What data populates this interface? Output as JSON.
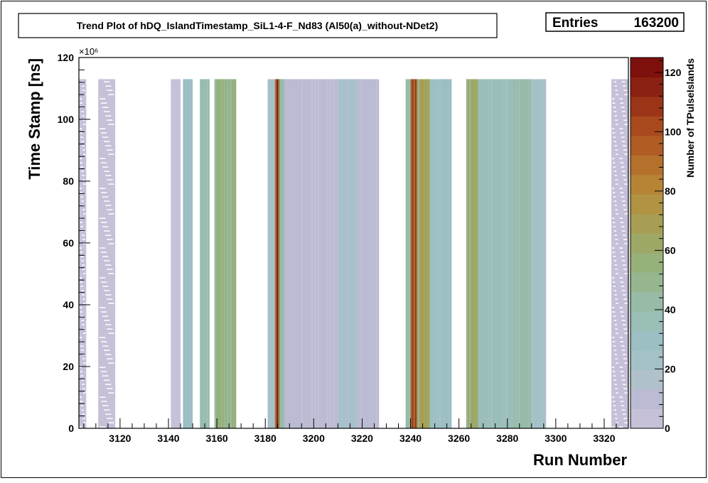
{
  "chart_data": {
    "type": "heatmap",
    "title": "Trend Plot of hDQ_IslandTimestamp_SiL1-4-F_Nd83 (Al50(a)_without-NDet2)",
    "stats": {
      "label": "Entries",
      "value": "163200"
    },
    "xlabel": "Run Number",
    "ylabel": "Time Stamp [ns]",
    "zlabel": "Number of TPulseIslands",
    "y_exponent": "×10⁶",
    "xlim": [
      3103,
      3330
    ],
    "ylim": [
      0,
      120
    ],
    "zlim": [
      0,
      125
    ],
    "x_ticks": [
      3120,
      3140,
      3160,
      3180,
      3200,
      3220,
      3240,
      3260,
      3280,
      3300,
      3320
    ],
    "y_ticks": [
      0,
      20,
      40,
      60,
      80,
      100,
      120
    ],
    "z_ticks": [
      0,
      20,
      40,
      60,
      80,
      100,
      120
    ],
    "y_max_filled": 113,
    "runs": [
      {
        "from": 3103,
        "to": 3106,
        "level": 3,
        "sparse": true
      },
      {
        "from": 3111,
        "to": 3118,
        "level": 2,
        "sparse": true
      },
      {
        "from": 3141,
        "to": 3145,
        "level": 6
      },
      {
        "from": 3146,
        "to": 3150,
        "level": 30
      },
      {
        "from": 3153,
        "to": 3157,
        "level": 45
      },
      {
        "from": 3159,
        "to": 3168,
        "level": 55
      },
      {
        "from": 3181,
        "to": 3184,
        "level": 25
      },
      {
        "from": 3184,
        "to": 3186,
        "level": 118
      },
      {
        "from": 3186,
        "to": 3188,
        "level": 40
      },
      {
        "from": 3188,
        "to": 3195,
        "level": 12
      },
      {
        "from": 3195,
        "to": 3210,
        "level": 8
      },
      {
        "from": 3210,
        "to": 3218,
        "level": 20
      },
      {
        "from": 3218,
        "to": 3227,
        "level": 10
      },
      {
        "from": 3238,
        "to": 3240,
        "level": 40
      },
      {
        "from": 3240,
        "to": 3243,
        "level": 110
      },
      {
        "from": 3243,
        "to": 3248,
        "level": 70
      },
      {
        "from": 3248,
        "to": 3257,
        "level": 30
      },
      {
        "from": 3263,
        "to": 3268,
        "level": 60
      },
      {
        "from": 3268,
        "to": 3282,
        "level": 35
      },
      {
        "from": 3282,
        "to": 3290,
        "level": 45
      },
      {
        "from": 3290,
        "to": 3296,
        "level": 25
      },
      {
        "from": 3323,
        "to": 3326,
        "level": 3,
        "sparse": true
      },
      {
        "from": 3326,
        "to": 3330,
        "level": 2,
        "sparse": true
      }
    ],
    "palette": [
      "#c6c0d8",
      "#bbbbd4",
      "#b1c1cc",
      "#a4c1c8",
      "#9bbfc2",
      "#99bfb7",
      "#98bba8",
      "#96b690",
      "#97b17a",
      "#9ea866",
      "#a89e53",
      "#b19343",
      "#b78436",
      "#b5702c",
      "#b05c24",
      "#a84a1e",
      "#9b3518",
      "#8a2112",
      "#7e110d"
    ]
  }
}
